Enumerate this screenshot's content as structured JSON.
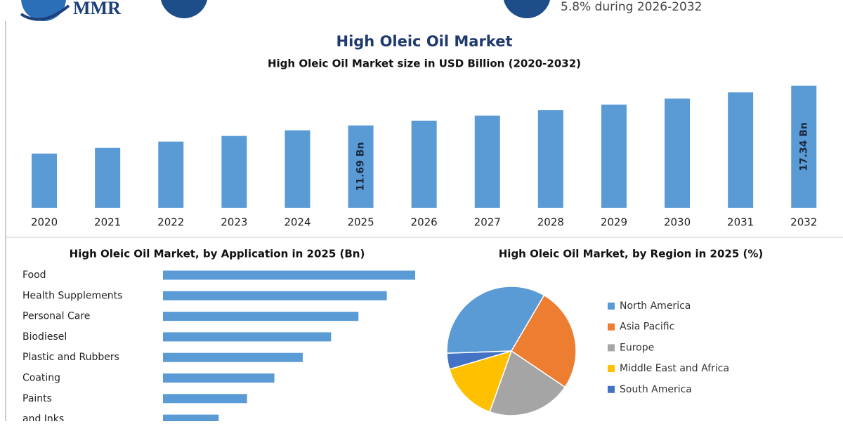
{
  "header": {
    "logo": "MMR",
    "growth_text": "5.8% during 2026-2032"
  },
  "chart_data": [
    {
      "type": "bar",
      "title": "High Oleic Oil Market",
      "subtitle": "High Oleic Oil Market size in USD Billion (2020-2032)",
      "categories": [
        "2020",
        "2021",
        "2022",
        "2023",
        "2024",
        "2025",
        "2026",
        "2027",
        "2028",
        "2029",
        "2030",
        "2031",
        "2032"
      ],
      "values": [
        7.7,
        8.5,
        9.4,
        10.2,
        11.0,
        11.69,
        12.37,
        13.09,
        13.85,
        14.65,
        15.5,
        16.4,
        17.34
      ],
      "value_labels": [
        null,
        null,
        null,
        null,
        null,
        "11.69 Bn",
        null,
        null,
        null,
        null,
        null,
        null,
        "17.34 Bn"
      ],
      "color": "#5b9bd5"
    },
    {
      "type": "hbar",
      "title": "High Oleic Oil Market, by Application in 2025 (Bn)",
      "categories": [
        "Food",
        "Health Supplements",
        "Personal Care",
        "Biodiesel",
        "Plastic and Rubbers",
        "Coating",
        "Paints",
        "and Inks"
      ],
      "values": [
        2.4,
        2.13,
        1.86,
        1.6,
        1.33,
        1.06,
        0.8,
        0.53
      ],
      "color": "#5b9bd5"
    },
    {
      "type": "pie",
      "title": "High Oleic Oil Market, by Region in 2025 (%)",
      "categories": [
        "North America",
        "Asia Pacific",
        "Europe",
        "Middle East and Africa",
        "South America"
      ],
      "values": [
        34,
        26,
        21,
        15,
        4
      ],
      "colors": [
        "#5b9bd5",
        "#ed7d31",
        "#a5a5a5",
        "#ffc000",
        "#4472c4"
      ],
      "legend": "right"
    }
  ]
}
